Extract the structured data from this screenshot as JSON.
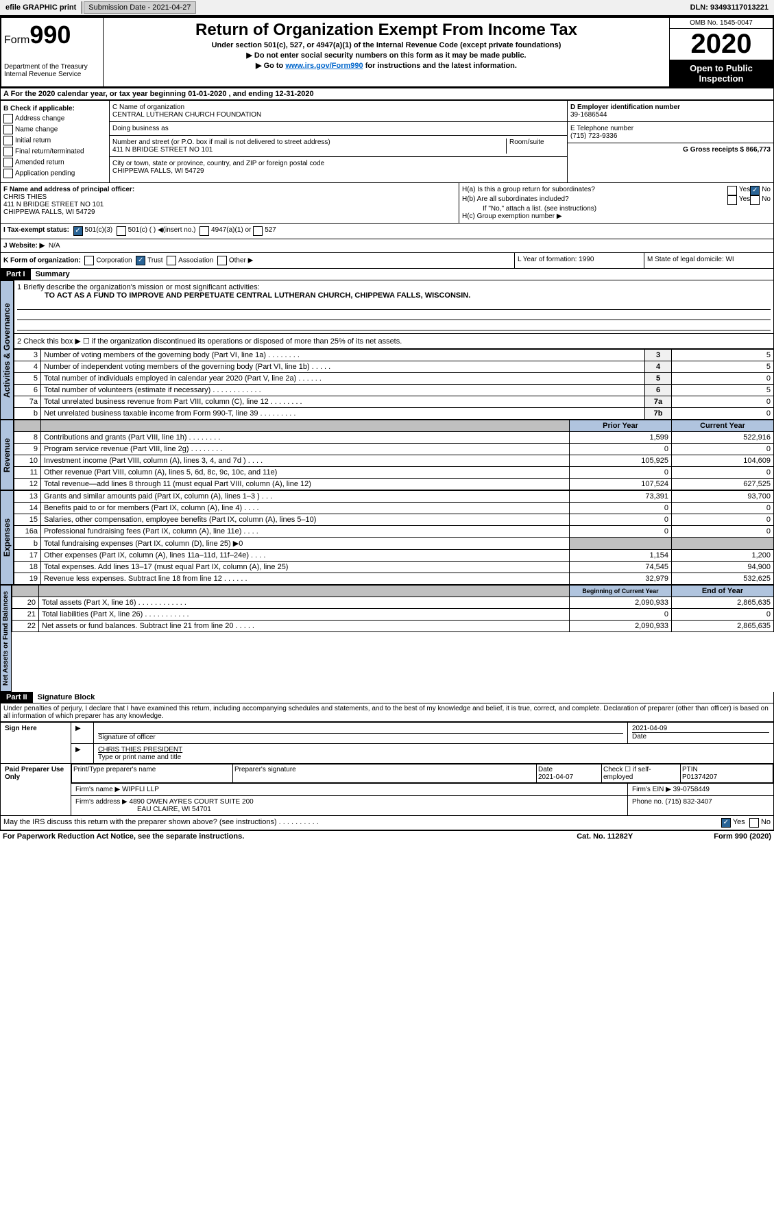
{
  "topbar": {
    "efile": "efile GRAPHIC print",
    "submission": "Submission Date - 2021-04-27",
    "dln": "DLN: 93493117013221"
  },
  "header": {
    "form_label": "Form",
    "form_number": "990",
    "dept": "Department of the Treasury",
    "irs": "Internal Revenue Service",
    "title": "Return of Organization Exempt From Income Tax",
    "subtitle1": "Under section 501(c), 527, or 4947(a)(1) of the Internal Revenue Code (except private foundations)",
    "subtitle2": "▶ Do not enter social security numbers on this form as it may be made public.",
    "subtitle3_pre": "▶ Go to ",
    "subtitle3_link": "www.irs.gov/Form990",
    "subtitle3_post": " for instructions and the latest information.",
    "omb": "OMB No. 1545-0047",
    "year": "2020",
    "open": "Open to Public Inspection"
  },
  "section_a": "A For the 2020 calendar year, or tax year beginning 01-01-2020    , and ending 12-31-2020",
  "box_b": {
    "label": "B Check if applicable:",
    "items": [
      "Address change",
      "Name change",
      "Initial return",
      "Final return/terminated",
      "Amended return",
      "Application pending"
    ]
  },
  "box_c": {
    "name_label": "C Name of organization",
    "name": "CENTRAL LUTHERAN CHURCH FOUNDATION",
    "dba_label": "Doing business as",
    "addr_label": "Number and street (or P.O. box if mail is not delivered to street address)",
    "room_label": "Room/suite",
    "addr": "411 N BRIDGE STREET NO 101",
    "city_label": "City or town, state or province, country, and ZIP or foreign postal code",
    "city": "CHIPPEWA FALLS, WI  54729"
  },
  "box_d": {
    "label": "D Employer identification number",
    "value": "39-1686544"
  },
  "box_e": {
    "label": "E Telephone number",
    "value": "(715) 723-9336"
  },
  "box_g": {
    "label": "G Gross receipts $ 866,773"
  },
  "box_f": {
    "label": "F  Name and address of principal officer:",
    "name": "CHRIS THIES",
    "addr1": "411 N BRIDGE STREET NO 101",
    "addr2": "CHIPPEWA FALLS, WI  54729"
  },
  "box_h": {
    "ha": "H(a)  Is this a group return for subordinates?",
    "hb": "H(b)  Are all subordinates included?",
    "hb_note": "If \"No,\" attach a list. (see instructions)",
    "hc": "H(c)  Group exemption number ▶",
    "yes": "Yes",
    "no": "No"
  },
  "box_i": {
    "label": "I   Tax-exempt status:",
    "o501c3": "501(c)(3)",
    "o501c": "501(c) (  ) ◀(insert no.)",
    "o4947": "4947(a)(1) or",
    "o527": "527"
  },
  "box_j": {
    "label": "J   Website: ▶",
    "value": "N/A"
  },
  "box_k": {
    "label": "K Form of organization:",
    "corp": "Corporation",
    "trust": "Trust",
    "assoc": "Association",
    "other": "Other ▶"
  },
  "box_l": {
    "label": "L Year of formation: 1990"
  },
  "box_m": {
    "label": "M State of legal domicile: WI"
  },
  "part1": {
    "header": "Part I",
    "title": "Summary",
    "line1_label": "1   Briefly describe the organization's mission or most significant activities:",
    "line1_text": "TO ACT AS A FUND TO IMPROVE AND PERPETUATE CENTRAL LUTHERAN CHURCH, CHIPPEWA FALLS, WISCONSIN.",
    "line2": "2    Check this box ▶ ☐  if the organization discontinued its operations or disposed of more than 25% of its net assets.",
    "sidebar1": "Activities & Governance",
    "sidebar2": "Revenue",
    "sidebar3": "Expenses",
    "sidebar4": "Net Assets or Fund Balances",
    "rows_gov": [
      {
        "n": "3",
        "label": "Number of voting members of the governing body (Part VI, line 1a)   .    .    .    .    .    .    .    .",
        "box": "3",
        "val": "5"
      },
      {
        "n": "4",
        "label": "Number of independent voting members of the governing body (Part VI, line 1b)   .    .    .    .    .",
        "box": "4",
        "val": "5"
      },
      {
        "n": "5",
        "label": "Total number of individuals employed in calendar year 2020 (Part V, line 2a)   .    .    .    .    .    .",
        "box": "5",
        "val": "0"
      },
      {
        "n": "6",
        "label": "Total number of volunteers (estimate if necessary)   .    .    .    .    .    .    .    .    .    .    .    .",
        "box": "6",
        "val": "5"
      },
      {
        "n": "7a",
        "label": "Total unrelated business revenue from Part VIII, column (C), line 12   .    .    .    .    .    .    .    .",
        "box": "7a",
        "val": "0"
      },
      {
        "n": "b",
        "label": "Net unrelated business taxable income from Form 990-T, line 39   .    .    .    .    .    .    .    .    .",
        "box": "7b",
        "val": "0"
      }
    ],
    "col_prior": "Prior Year",
    "col_current": "Current Year",
    "rows_rev": [
      {
        "n": "8",
        "label": "Contributions and grants (Part VIII, line 1h)   .    .    .    .    .    .    .    .",
        "prior": "1,599",
        "curr": "522,916"
      },
      {
        "n": "9",
        "label": "Program service revenue (Part VIII, line 2g)   .    .    .    .    .    .    .    .",
        "prior": "0",
        "curr": "0"
      },
      {
        "n": "10",
        "label": "Investment income (Part VIII, column (A), lines 3, 4, and 7d )   .    .    .    .",
        "prior": "105,925",
        "curr": "104,609"
      },
      {
        "n": "11",
        "label": "Other revenue (Part VIII, column (A), lines 5, 6d, 8c, 9c, 10c, and 11e)",
        "prior": "0",
        "curr": "0"
      },
      {
        "n": "12",
        "label": "Total revenue—add lines 8 through 11 (must equal Part VIII, column (A), line 12)",
        "prior": "107,524",
        "curr": "627,525"
      }
    ],
    "rows_exp": [
      {
        "n": "13",
        "label": "Grants and similar amounts paid (Part IX, column (A), lines 1–3 )   .    .    .",
        "prior": "73,391",
        "curr": "93,700"
      },
      {
        "n": "14",
        "label": "Benefits paid to or for members (Part IX, column (A), line 4)   .    .    .    .",
        "prior": "0",
        "curr": "0"
      },
      {
        "n": "15",
        "label": "Salaries, other compensation, employee benefits (Part IX, column (A), lines 5–10)",
        "prior": "0",
        "curr": "0"
      },
      {
        "n": "16a",
        "label": "Professional fundraising fees (Part IX, column (A), line 11e)   .    .    .    .",
        "prior": "0",
        "curr": "0"
      },
      {
        "n": "b",
        "label": "Total fundraising expenses (Part IX, column (D), line 25) ▶0",
        "prior": "",
        "curr": "",
        "grey": true
      },
      {
        "n": "17",
        "label": "Other expenses (Part IX, column (A), lines 11a–11d, 11f–24e)   .    .    .    .",
        "prior": "1,154",
        "curr": "1,200"
      },
      {
        "n": "18",
        "label": "Total expenses. Add lines 13–17 (must equal Part IX, column (A), line 25)",
        "prior": "74,545",
        "curr": "94,900"
      },
      {
        "n": "19",
        "label": "Revenue less expenses. Subtract line 18 from line 12   .    .    .    .    .    .",
        "prior": "32,979",
        "curr": "532,625"
      }
    ],
    "col_begin": "Beginning of Current Year",
    "col_end": "End of Year",
    "rows_net": [
      {
        "n": "20",
        "label": "Total assets (Part X, line 16)   .    .    .    .    .    .    .    .    .    .    .    .",
        "prior": "2,090,933",
        "curr": "2,865,635"
      },
      {
        "n": "21",
        "label": "Total liabilities (Part X, line 26)   .    .    .    .    .    .    .    .    .    .    .",
        "prior": "0",
        "curr": "0"
      },
      {
        "n": "22",
        "label": "Net assets or fund balances. Subtract line 21 from line 20   .    .    .    .    .",
        "prior": "2,090,933",
        "curr": "2,865,635"
      }
    ]
  },
  "part2": {
    "header": "Part II",
    "title": "Signature Block",
    "perjury": "Under penalties of perjury, I declare that I have examined this return, including accompanying schedules and statements, and to the best of my knowledge and belief, it is true, correct, and complete. Declaration of preparer (other than officer) is based on all information of which preparer has any knowledge.",
    "sign_here": "Sign Here",
    "sig_officer": "Signature of officer",
    "sig_date": "2021-04-09",
    "date_label": "Date",
    "officer_name": "CHRIS THIES PRESIDENT",
    "type_name": "Type or print name and title",
    "paid": "Paid Preparer Use Only",
    "prep_name_label": "Print/Type preparer's name",
    "prep_sig_label": "Preparer's signature",
    "prep_date_label": "Date",
    "prep_date": "2021-04-07",
    "check_self": "Check ☐ if self-employed",
    "ptin_label": "PTIN",
    "ptin": "P01374207",
    "firm_name_label": "Firm's name      ▶",
    "firm_name": "WIPFLI LLP",
    "firm_ein_label": "Firm's EIN ▶",
    "firm_ein": "39-0758449",
    "firm_addr_label": "Firm's address ▶",
    "firm_addr1": "4890 OWEN AYRES COURT SUITE 200",
    "firm_addr2": "EAU CLAIRE, WI  54701",
    "phone_label": "Phone no.",
    "phone": "(715) 832-3407",
    "discuss": "May the IRS discuss this return with the preparer shown above? (see instructions)    .    .    .    .    .    .    .    .    .    .",
    "yes": "Yes",
    "no": "No"
  },
  "footer": {
    "paperwork": "For Paperwork Reduction Act Notice, see the separate instructions.",
    "cat": "Cat. No. 11282Y",
    "form": "Form 990 (2020)"
  }
}
